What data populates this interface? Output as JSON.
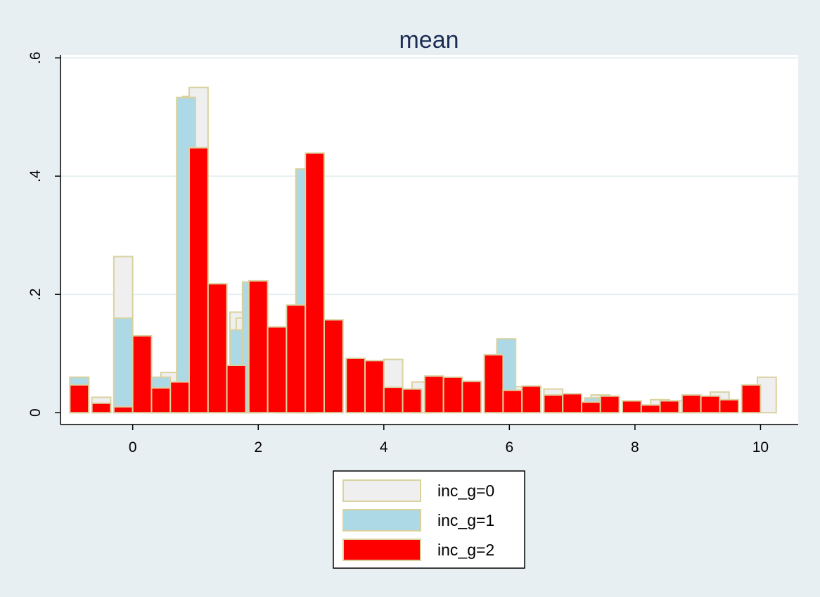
{
  "chart_data": {
    "type": "bar",
    "title": "mean",
    "xlabel": "",
    "ylabel": "",
    "xlim": [
      -1.15,
      10.6
    ],
    "ylim": [
      -0.02,
      0.605
    ],
    "x_ticks": [
      {
        "value": 0,
        "label": "0"
      },
      {
        "value": 2,
        "label": "2"
      },
      {
        "value": 4,
        "label": "4"
      },
      {
        "value": 6,
        "label": "6"
      },
      {
        "value": 8,
        "label": "8"
      },
      {
        "value": 10,
        "label": "10"
      }
    ],
    "y_ticks": [
      {
        "value": 0,
        "label": "0"
      },
      {
        "value": 0.2,
        "label": ".2"
      },
      {
        "value": 0.4,
        "label": ".4"
      },
      {
        "value": 0.6,
        "label": ".6"
      }
    ],
    "grid": true,
    "legend_position": "bottom",
    "bar_outline_color": "#d9d2a0",
    "series": [
      {
        "name": "inc_g=0",
        "color": "#efefef",
        "bars": [
          {
            "x": -0.85,
            "y": 0.06
          },
          {
            "x": -0.5,
            "y": 0.026
          },
          {
            "x": -0.15,
            "y": 0.264
          },
          {
            "x": 0.35,
            "y": 0.044
          },
          {
            "x": 0.6,
            "y": 0.068
          },
          {
            "x": 0.95,
            "y": 0.535
          },
          {
            "x": 1.05,
            "y": 0.55
          },
          {
            "x": 1.7,
            "y": 0.17
          },
          {
            "x": 1.8,
            "y": 0.16
          },
          {
            "x": 1.9,
            "y": 0.221
          },
          {
            "x": 2.45,
            "y": 0.145
          },
          {
            "x": 2.7,
            "y": 0.182
          },
          {
            "x": 2.75,
            "y": 0.412
          },
          {
            "x": 4.15,
            "y": 0.09
          },
          {
            "x": 4.6,
            "y": 0.052
          },
          {
            "x": 6.15,
            "y": 0.044
          },
          {
            "x": 6.7,
            "y": 0.04
          },
          {
            "x": 7.45,
            "y": 0.03
          },
          {
            "x": 8.4,
            "y": 0.022
          },
          {
            "x": 8.7,
            "y": 0.02
          },
          {
            "x": 9.0,
            "y": 0.027
          },
          {
            "x": 9.35,
            "y": 0.035
          },
          {
            "x": 10.1,
            "y": 0.06
          }
        ]
      },
      {
        "name": "inc_g=1",
        "color": "#add8e6",
        "bars": [
          {
            "x": -0.85,
            "y": 0.06
          },
          {
            "x": -0.15,
            "y": 0.16
          },
          {
            "x": 0.45,
            "y": 0.06
          },
          {
            "x": 0.85,
            "y": 0.533
          },
          {
            "x": 1.7,
            "y": 0.14
          },
          {
            "x": 1.9,
            "y": 0.221
          },
          {
            "x": 2.75,
            "y": 0.412
          },
          {
            "x": 5.95,
            "y": 0.125
          },
          {
            "x": 7.35,
            "y": 0.025
          },
          {
            "x": 7.55,
            "y": 0.025
          }
        ]
      },
      {
        "name": "inc_g=2",
        "color": "#ff0000",
        "bars": [
          {
            "x": -0.85,
            "y": 0.047
          },
          {
            "x": -0.5,
            "y": 0.016
          },
          {
            "x": -0.15,
            "y": 0.01
          },
          {
            "x": 0.15,
            "y": 0.13
          },
          {
            "x": 0.45,
            "y": 0.042
          },
          {
            "x": 0.75,
            "y": 0.052
          },
          {
            "x": 1.05,
            "y": 0.448
          },
          {
            "x": 1.35,
            "y": 0.218
          },
          {
            "x": 1.65,
            "y": 0.08
          },
          {
            "x": 2.0,
            "y": 0.223
          },
          {
            "x": 2.3,
            "y": 0.145
          },
          {
            "x": 2.6,
            "y": 0.182
          },
          {
            "x": 2.9,
            "y": 0.439
          },
          {
            "x": 3.2,
            "y": 0.157
          },
          {
            "x": 3.55,
            "y": 0.092
          },
          {
            "x": 3.85,
            "y": 0.088
          },
          {
            "x": 4.15,
            "y": 0.043
          },
          {
            "x": 4.45,
            "y": 0.04
          },
          {
            "x": 4.8,
            "y": 0.062
          },
          {
            "x": 5.1,
            "y": 0.06
          },
          {
            "x": 5.4,
            "y": 0.053
          },
          {
            "x": 5.75,
            "y": 0.098
          },
          {
            "x": 6.05,
            "y": 0.038
          },
          {
            "x": 6.35,
            "y": 0.045
          },
          {
            "x": 6.7,
            "y": 0.03
          },
          {
            "x": 7.0,
            "y": 0.032
          },
          {
            "x": 7.3,
            "y": 0.018
          },
          {
            "x": 7.6,
            "y": 0.028
          },
          {
            "x": 7.95,
            "y": 0.02
          },
          {
            "x": 8.25,
            "y": 0.013
          },
          {
            "x": 8.55,
            "y": 0.02
          },
          {
            "x": 8.9,
            "y": 0.03
          },
          {
            "x": 9.2,
            "y": 0.028
          },
          {
            "x": 9.5,
            "y": 0.022
          },
          {
            "x": 9.85,
            "y": 0.047
          }
        ]
      }
    ]
  },
  "legend": {
    "items": [
      {
        "label": "inc_g=0",
        "color": "#efefef"
      },
      {
        "label": "inc_g=1",
        "color": "#add8e6"
      },
      {
        "label": "inc_g=2",
        "color": "#ff0000"
      }
    ]
  }
}
